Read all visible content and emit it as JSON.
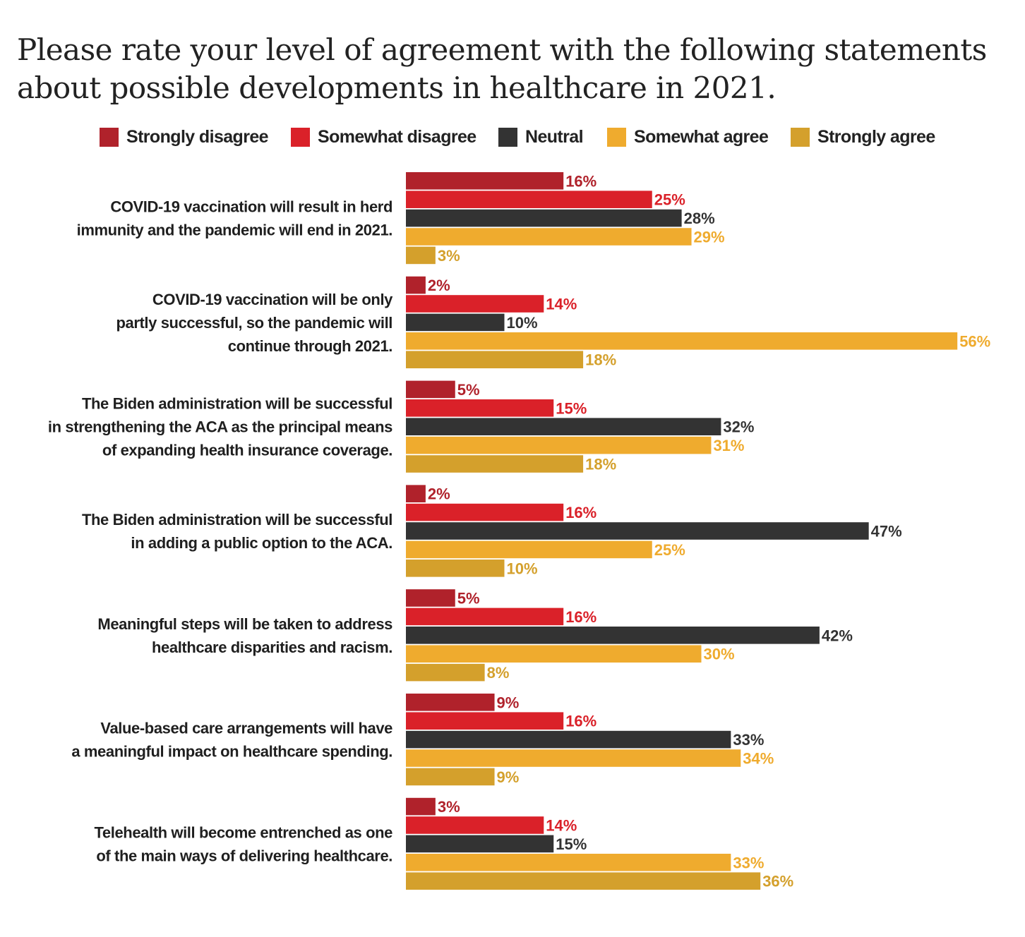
{
  "chart_data": {
    "type": "bar",
    "orientation": "horizontal",
    "title_lines": [
      "Please rate your level of agreement with the following statements",
      "about possible developments in healthcare in 2021."
    ],
    "legend": [
      {
        "name": "Strongly disagree",
        "color": "#B0222B"
      },
      {
        "name": "Somewhat disagree",
        "color": "#DA2129"
      },
      {
        "name": "Neutral",
        "color": "#333333"
      },
      {
        "name": "Somewhat agree",
        "color": "#EFAB2E"
      },
      {
        "name": "Strongly agree",
        "color": "#D4A02C"
      }
    ],
    "categories": [
      [
        "COVID-19 vaccination will result in herd",
        "immunity and the pandemic will end in 2021."
      ],
      [
        "COVID-19 vaccination will be only",
        "partly successful, so the pandemic will",
        "continue through 2021."
      ],
      [
        "The Biden administration will be successful",
        "in strengthening the ACA as the principal means",
        "of expanding health insurance coverage."
      ],
      [
        "The Biden administration will be successful",
        "in adding a public option to the ACA."
      ],
      [
        "Meaningful steps will be taken to address",
        "healthcare disparities and racism."
      ],
      [
        "Value-based care arrangements will have",
        "a meaningful impact on healthcare spending."
      ],
      [
        "Telehealth will become entrenched as one",
        "of the main ways of delivering healthcare."
      ]
    ],
    "series": [
      {
        "name": "Strongly disagree",
        "values": [
          16,
          2,
          5,
          2,
          5,
          9,
          3
        ]
      },
      {
        "name": "Somewhat disagree",
        "values": [
          25,
          14,
          15,
          16,
          16,
          16,
          14
        ]
      },
      {
        "name": "Neutral",
        "values": [
          28,
          10,
          32,
          47,
          42,
          33,
          15
        ]
      },
      {
        "name": "Somewhat agree",
        "values": [
          29,
          56,
          31,
          25,
          30,
          34,
          33
        ]
      },
      {
        "name": "Strongly agree",
        "values": [
          3,
          18,
          18,
          10,
          8,
          9,
          36
        ]
      }
    ],
    "label_colors": [
      "#B0222B",
      "#DA2129",
      "#333333",
      "#EFAB2E",
      "#D4A02C"
    ],
    "value_suffix": "%",
    "xlim": [
      0,
      56
    ],
    "xlabel": "",
    "ylabel": ""
  }
}
